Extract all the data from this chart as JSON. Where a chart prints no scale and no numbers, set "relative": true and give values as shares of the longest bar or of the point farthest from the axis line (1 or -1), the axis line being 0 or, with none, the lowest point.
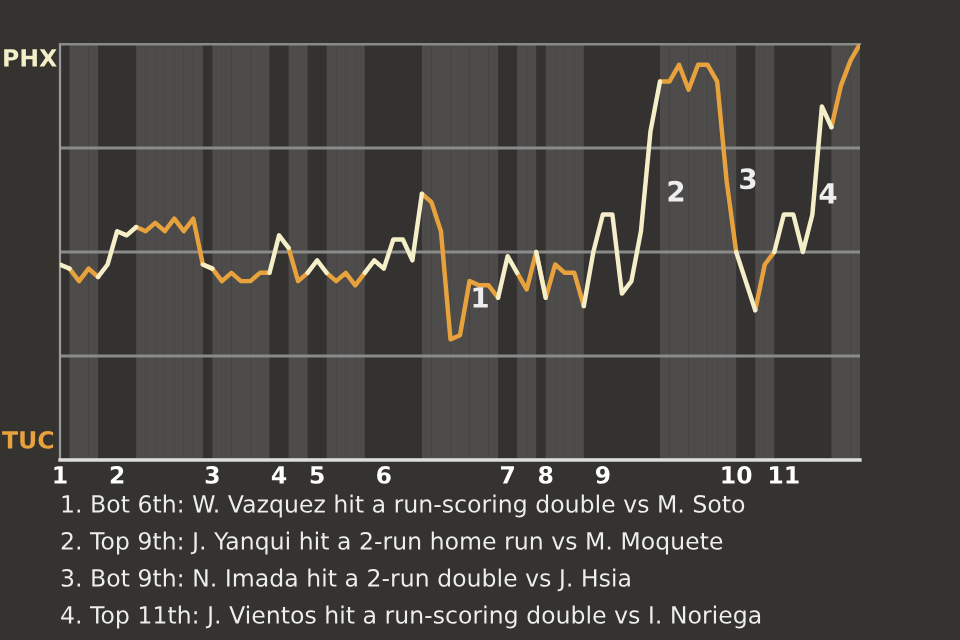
{
  "chart_data": {
    "type": "line",
    "categories": [
      "1",
      null,
      null,
      null,
      null,
      null,
      "2",
      null,
      null,
      null,
      null,
      null,
      null,
      null,
      null,
      null,
      "3",
      null,
      null,
      null,
      null,
      null,
      null,
      "4",
      null,
      null,
      null,
      "5",
      null,
      null,
      null,
      null,
      null,
      null,
      "6",
      null,
      null,
      null,
      null,
      null,
      null,
      null,
      null,
      null,
      null,
      null,
      null,
      "7",
      null,
      null,
      null,
      "8",
      null,
      null,
      null,
      null,
      null,
      "9",
      null,
      null,
      null,
      null,
      null,
      null,
      null,
      null,
      null,
      null,
      null,
      null,
      null,
      "10",
      null,
      null,
      null,
      null,
      "11",
      null,
      null,
      null,
      null,
      null,
      null,
      null,
      null
    ],
    "relative": true,
    "series": [
      {
        "color": "#e8a23d",
        "values": [
          null,
          0.46,
          0.43,
          0.46,
          0.44,
          null,
          null,
          null,
          0.56,
          0.55,
          0.57,
          0.55,
          0.58,
          0.55,
          0.58,
          0.47,
          0.46,
          0.43,
          0.45,
          0.43,
          0.43,
          0.45,
          0.45,
          null,
          0.51,
          0.43,
          0.45,
          null,
          0.45,
          0.43,
          0.45,
          0.42,
          0.45,
          null,
          null,
          null,
          null,
          null,
          0.64,
          0.62,
          0.55,
          0.29,
          0.3,
          0.43,
          0.42,
          0.42,
          0.39,
          null,
          0.45,
          0.41,
          0.5,
          0.39,
          0.47,
          0.45,
          0.45,
          0.37,
          null,
          null,
          null,
          null,
          null,
          null,
          null,
          0.91,
          0.91,
          0.95,
          0.89,
          0.95,
          0.95,
          0.91,
          0.67,
          0.5,
          null,
          0.36,
          0.47,
          0.5,
          null,
          null,
          null,
          null,
          null,
          0.8,
          0.9,
          0.96,
          1.0
        ]
      },
      {
        "color": "#f4efc8",
        "values": [
          0.47,
          0.46,
          null,
          null,
          0.44,
          0.47,
          0.55,
          0.54,
          0.56,
          null,
          null,
          null,
          null,
          null,
          null,
          0.47,
          0.46,
          null,
          null,
          null,
          null,
          null,
          0.45,
          0.54,
          0.51,
          null,
          0.45,
          0.48,
          0.45,
          null,
          null,
          null,
          0.45,
          0.48,
          0.46,
          0.53,
          0.53,
          0.48,
          0.64,
          null,
          null,
          null,
          null,
          null,
          null,
          null,
          0.39,
          0.49,
          0.45,
          null,
          0.5,
          0.39,
          null,
          null,
          null,
          0.37,
          0.5,
          0.59,
          0.59,
          0.4,
          0.43,
          0.55,
          0.79,
          0.91,
          null,
          null,
          null,
          null,
          null,
          null,
          null,
          0.5,
          0.43,
          0.36,
          null,
          0.5,
          0.59,
          0.59,
          0.5,
          0.59,
          0.85,
          0.8,
          null,
          null,
          null
        ]
      }
    ],
    "grid": "y",
    "annotations": [
      "PHX",
      "TUC",
      "1",
      "2",
      "3",
      "4",
      "1. Bot 6th: W. Vazquez hit a run-scoring double vs M. Soto",
      "2. Top 9th: J. Yanqui hit a 2-run home run vs M. Moquete",
      "3. Bot 9th: N. Imada hit a 2-run double vs J. Hsia",
      "4. Top 11th: J. Vientos hit a run-scoring double vs I. Noriega"
    ]
  }
}
